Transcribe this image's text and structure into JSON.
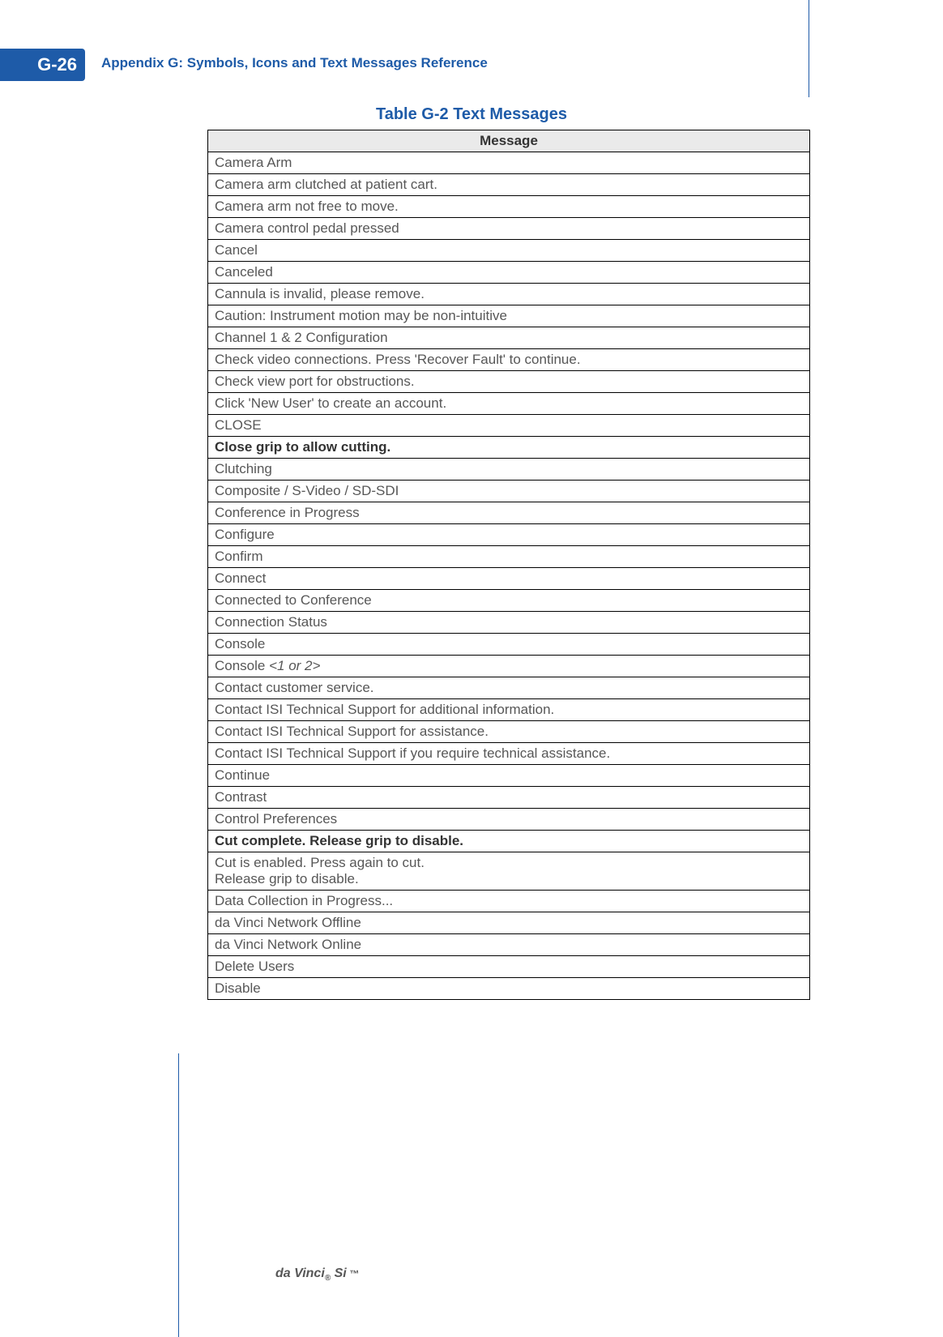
{
  "page": {
    "badge": "G-26",
    "appendix_title": "Appendix G: Symbols, Icons and Text Messages Reference",
    "table_title": "Table G-2 Text Messages",
    "column_header": "Message",
    "footer_brand_main": "da Vinci",
    "footer_brand_reg": "®",
    "footer_brand_model": " Si",
    "footer_brand_tm": " ™"
  },
  "colors": {
    "brand_blue": "#1e5ba8",
    "header_bg": "#eaeaea",
    "body_text": "#575757",
    "border": "#000000",
    "bg": "#ffffff"
  },
  "rows": [
    {
      "text": "Camera Arm",
      "bold": false
    },
    {
      "text": "Camera arm clutched at patient cart.",
      "bold": false
    },
    {
      "text": "Camera arm not free to move.",
      "bold": false
    },
    {
      "text": "Camera control pedal pressed",
      "bold": false
    },
    {
      "text": "Cancel",
      "bold": false
    },
    {
      "text": "Canceled",
      "bold": false
    },
    {
      "text": "Cannula is invalid, please remove.",
      "bold": false
    },
    {
      "text": "Caution: Instrument motion may be non-intuitive",
      "bold": false
    },
    {
      "text": "Channel 1 & 2 Configuration",
      "bold": false
    },
    {
      "text": "Check video connections. Press 'Recover Fault' to continue.",
      "bold": false
    },
    {
      "text": "Check view port for obstructions.",
      "bold": false
    },
    {
      "text": "Click 'New User' to create an account.",
      "bold": false
    },
    {
      "text": "CLOSE",
      "bold": false
    },
    {
      "text": "Close grip to allow cutting.",
      "bold": true
    },
    {
      "text": "Clutching",
      "bold": false
    },
    {
      "text": "Composite / S-Video / SD-SDI",
      "bold": false
    },
    {
      "text": "Conference in Progress",
      "bold": false
    },
    {
      "text": "Configure",
      "bold": false
    },
    {
      "text": "Confirm",
      "bold": false
    },
    {
      "text": "Connect",
      "bold": false
    },
    {
      "text": "Connected to Conference",
      "bold": false
    },
    {
      "text": "Connection Status",
      "bold": false
    },
    {
      "text": "Console",
      "bold": false
    },
    {
      "text_pre": "Console ",
      "text_ital": "<1 or 2>",
      "bold": false,
      "mixed": true
    },
    {
      "text": "Contact customer service.",
      "bold": false
    },
    {
      "text": "Contact ISI Technical Support for additional information.",
      "bold": false
    },
    {
      "text": "Contact ISI Technical Support for assistance.",
      "bold": false
    },
    {
      "text": "Contact ISI Technical Support if you require technical assistance.",
      "bold": false
    },
    {
      "text": "Continue",
      "bold": false
    },
    {
      "text": "Contrast",
      "bold": false
    },
    {
      "text": "Control Preferences",
      "bold": false
    },
    {
      "text": "Cut complete. Release grip to disable.",
      "bold": true
    },
    {
      "text_line1": "Cut is enabled. Press again to cut.",
      "text_line2": "Release grip to disable.",
      "bold": false,
      "multiline": true
    },
    {
      "text": "Data Collection in Progress...",
      "bold": false
    },
    {
      "text": "da Vinci Network Offline",
      "bold": false
    },
    {
      "text": "da Vinci Network Online",
      "bold": false
    },
    {
      "text": "Delete Users",
      "bold": false
    },
    {
      "text": "Disable",
      "bold": false
    }
  ]
}
